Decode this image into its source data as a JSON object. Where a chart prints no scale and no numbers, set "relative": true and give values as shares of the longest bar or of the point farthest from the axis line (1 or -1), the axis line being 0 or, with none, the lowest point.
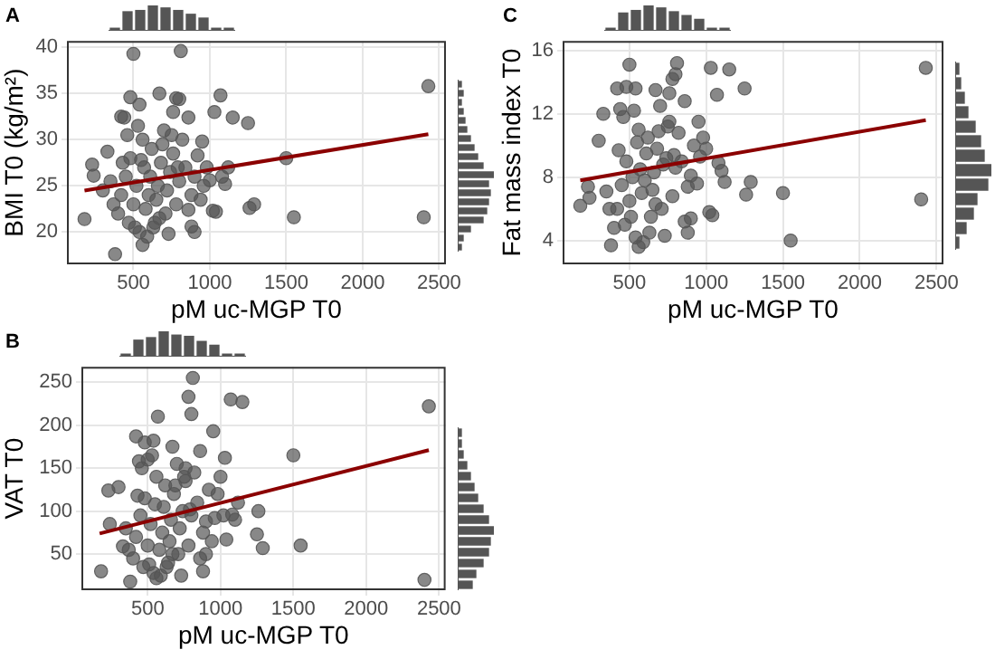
{
  "chart_data": [
    {
      "type": "scatter",
      "title": "A",
      "xlabel": "pM uc-MGP T0",
      "ylabel": "BMI T0 (kg/m²)",
      "xlim": [
        65,
        2545
      ],
      "xticks": [
        500,
        1000,
        1500,
        2000,
        2500
      ],
      "ylim": [
        16.5,
        40.7
      ],
      "yticks": [
        20,
        25,
        30,
        35,
        40
      ],
      "grid": true,
      "series": [
        {
          "type": "scatter",
          "marker": "circle",
          "color": "#555555",
          "x": [
            2430,
            2400,
            1550,
            1500,
            1290,
            1260,
            1250,
            1150,
            1070,
            1030,
            1040,
            1020,
            500,
            810,
            180,
            380,
            560,
            900,
            880,
            230,
            240,
            330,
            670,
            480,
            540,
            780,
            800,
            420,
            440,
            860,
            760,
            980,
            1000,
            950,
            1120,
            300,
            400,
            420,
            450,
            470,
            480,
            500,
            520,
            540,
            560,
            570,
            580,
            600,
            610,
            620,
            640,
            650,
            660,
            680,
            700,
            710,
            720,
            740,
            760,
            780,
            800,
            820,
            840,
            860,
            880,
            900,
            920,
            940,
            960,
            460,
            530,
            590,
            630,
            690,
            750,
            430,
            510,
            550,
            670,
            730,
            790,
            350,
            370,
            1080,
            1100
          ],
          "values": [
            35.8,
            21.6,
            21.6,
            28,
            23,
            22.6,
            31.8,
            32.4,
            34.8,
            33,
            22.2,
            22.3,
            39.3,
            39.6,
            21.4,
            17.6,
            18.6,
            20,
            20.6,
            27.3,
            26.1,
            28.7,
            35,
            34.6,
            33.8,
            34.5,
            34.4,
            32.5,
            32.4,
            32.4,
            33,
            27,
            25.6,
            29.8,
            27,
            24.5,
            22,
            24,
            26,
            21,
            28,
            23,
            25,
            20,
            30,
            27,
            22.5,
            24,
            26,
            29,
            21,
            23.5,
            25,
            27.5,
            31,
            22,
            24.5,
            26.5,
            28.5,
            23,
            25.5,
            30,
            27,
            22.4,
            24,
            26,
            28.3,
            23.5,
            25,
            30.5,
            31.5,
            19.5,
            20.5,
            29.5,
            30.5,
            27.5,
            20.5,
            27.8,
            21.5,
            19.8,
            27,
            25.5,
            23,
            26,
            25.2
          ]
        },
        {
          "type": "line",
          "color": "#8b0000",
          "x": [
            180,
            2430
          ],
          "values": [
            24.5,
            30.6
          ]
        }
      ]
    },
    {
      "type": "bar",
      "relative": true,
      "color": "#555555",
      "categories": [
        null,
        null,
        null,
        null,
        null,
        null,
        null,
        null,
        null,
        null
      ],
      "values": [
        0.1,
        0.75,
        0.8,
        1,
        0.9,
        0.8,
        0.65,
        0.5,
        0.1,
        0.1
      ]
    },
    {
      "type": "bar",
      "orientation": "horizontal",
      "relative": true,
      "color": "#555555",
      "categories": [
        null,
        null,
        null,
        null,
        null,
        null,
        null,
        null,
        null,
        null,
        null,
        null,
        null,
        null,
        null,
        null,
        null,
        null,
        null
      ],
      "values": [
        0.1,
        0.15,
        0.1,
        0.15,
        0.2,
        0.25,
        0.35,
        0.45,
        0.55,
        0.7,
        1,
        0.85,
        0.9,
        0.85,
        0.8,
        0.7,
        0.35,
        0.15,
        0.1
      ]
    },
    {
      "type": "scatter",
      "title": "C",
      "xlabel": "pM uc-MGP T0",
      "ylabel": "Fat mass index T0",
      "xlim": [
        65,
        2545
      ],
      "xticks": [
        500,
        1000,
        1500,
        2000,
        2500
      ],
      "ylim": [
        2.5,
        16.6
      ],
      "yticks": [
        4,
        8,
        12,
        16
      ],
      "grid": true,
      "series": [
        {
          "type": "scatter",
          "marker": "circle",
          "color": "#555555",
          "x": [
            2430,
            2400,
            1550,
            1500,
            1290,
            1260,
            1250,
            1150,
            1070,
            1030,
            1040,
            1020,
            500,
            810,
            180,
            380,
            560,
            900,
            880,
            230,
            240,
            330,
            670,
            480,
            540,
            780,
            800,
            420,
            440,
            860,
            760,
            980,
            1000,
            950,
            1120,
            300,
            400,
            420,
            450,
            470,
            480,
            500,
            520,
            540,
            560,
            570,
            580,
            600,
            610,
            620,
            640,
            650,
            660,
            680,
            700,
            710,
            720,
            740,
            760,
            780,
            800,
            820,
            840,
            860,
            880,
            900,
            920,
            940,
            960,
            460,
            530,
            590,
            630,
            690,
            750,
            430,
            510,
            550,
            670,
            730,
            790,
            350,
            370,
            1080,
            1100
          ],
          "values": [
            14.9,
            6.6,
            4,
            7,
            7.7,
            6.9,
            13.6,
            14.8,
            13.2,
            14.9,
            5.6,
            5.8,
            15.1,
            15.2,
            6.2,
            3.7,
            3.6,
            5.4,
            4.5,
            7.4,
            6.7,
            12,
            13.5,
            13.7,
            13.6,
            14.2,
            14.5,
            13.6,
            12.3,
            12.8,
            13.3,
            10.5,
            9.8,
            11.5,
            7.7,
            10.3,
            4.8,
            6,
            7.5,
            5,
            9,
            6.5,
            8,
            4.2,
            11,
            8.5,
            7,
            7.8,
            9.5,
            10.5,
            5.5,
            7.2,
            8.3,
            9.8,
            12.5,
            6,
            8.8,
            9.2,
            11.5,
            6.8,
            8.6,
            10.8,
            9,
            5.2,
            7.4,
            8.1,
            10,
            7.6,
            9.3,
            11.8,
            12.2,
            3.9,
            4.5,
            10.9,
            11.2,
            9.7,
            5.5,
            10.2,
            6.3,
            4.3,
            9.4,
            7.1,
            6,
            8.9,
            8.4
          ]
        },
        {
          "type": "line",
          "color": "#8b0000",
          "x": [
            180,
            2430
          ],
          "values": [
            7.8,
            11.6
          ]
        }
      ]
    },
    {
      "type": "bar",
      "relative": true,
      "color": "#555555",
      "categories": [
        null,
        null,
        null,
        null,
        null,
        null,
        null,
        null,
        null,
        null
      ],
      "values": [
        0.1,
        0.7,
        0.8,
        1,
        0.9,
        0.75,
        0.6,
        0.45,
        0.1,
        0.1
      ]
    },
    {
      "type": "bar",
      "orientation": "horizontal",
      "relative": true,
      "color": "#555555",
      "categories": [
        null,
        null,
        null,
        null,
        null,
        null,
        null,
        null,
        null,
        null,
        null,
        null,
        null
      ],
      "values": [
        0.1,
        0.15,
        0.25,
        0.35,
        0.55,
        0.7,
        0.8,
        1,
        0.9,
        0.6,
        0.5,
        0.3,
        0.1
      ]
    },
    {
      "type": "scatter",
      "title": "B",
      "xlabel": "pM uc-MGP T0",
      "ylabel": "VAT T0",
      "xlim": [
        45,
        2545
      ],
      "xticks": [
        500,
        1000,
        1500,
        2000,
        2500
      ],
      "ylim": [
        8,
        268
      ],
      "yticks": [
        50,
        100,
        150,
        200,
        250
      ],
      "grid": true,
      "series": [
        {
          "type": "scatter",
          "marker": "circle",
          "color": "#555555",
          "x": [
            2430,
            2400,
            1550,
            1500,
            1290,
            1260,
            1250,
            1150,
            1070,
            1030,
            1040,
            1020,
            500,
            810,
            180,
            380,
            560,
            900,
            880,
            230,
            240,
            330,
            670,
            480,
            540,
            780,
            800,
            420,
            440,
            860,
            760,
            980,
            1000,
            950,
            1120,
            300,
            400,
            420,
            450,
            470,
            480,
            500,
            520,
            540,
            560,
            570,
            580,
            600,
            610,
            620,
            640,
            650,
            660,
            680,
            700,
            710,
            720,
            740,
            760,
            780,
            800,
            820,
            840,
            860,
            880,
            900,
            920,
            940,
            960,
            460,
            530,
            590,
            630,
            690,
            750,
            430,
            510,
            550,
            670,
            730,
            790,
            350,
            370,
            1080,
            1100
          ],
          "values": [
            222,
            20,
            60,
            165,
            57,
            100,
            73,
            227,
            230,
            162,
            67,
            95,
            160,
            255,
            30,
            18,
            22,
            50,
            30,
            124,
            85,
            59,
            175,
            180,
            182,
            233,
            213,
            187,
            158,
            170,
            150,
            120,
            140,
            193,
            110,
            128,
            45,
            70,
            95,
            35,
            115,
            60,
            85,
            28,
            140,
            210,
            55,
            75,
            105,
            130,
            40,
            65,
            90,
            120,
            155,
            50,
            80,
            100,
            135,
            60,
            95,
            145,
            110,
            45,
            75,
            88,
            125,
            65,
            92,
            150,
            165,
            25,
            35,
            130,
            140,
            118,
            38,
            108,
            50,
            25,
            102,
            80,
            55,
            96,
            90
          ]
        },
        {
          "type": "line",
          "color": "#8b0000",
          "x": [
            170,
            2430
          ],
          "values": [
            74,
            171
          ]
        }
      ]
    },
    {
      "type": "bar",
      "relative": true,
      "color": "#555555",
      "categories": [
        null,
        null,
        null,
        null,
        null,
        null,
        null,
        null,
        null,
        null
      ],
      "values": [
        0.1,
        0.65,
        0.75,
        1,
        0.85,
        0.8,
        0.6,
        0.45,
        0.1,
        0.1
      ]
    },
    {
      "type": "bar",
      "orientation": "horizontal",
      "relative": true,
      "color": "#555555",
      "categories": [
        null,
        null,
        null,
        null,
        null,
        null,
        null,
        null,
        null,
        null,
        null,
        null,
        null,
        null,
        null
      ],
      "values": [
        0.1,
        0.1,
        0.15,
        0.25,
        0.35,
        0.45,
        0.55,
        0.7,
        0.85,
        1,
        0.9,
        0.85,
        0.7,
        0.5,
        0.4
      ]
    }
  ]
}
